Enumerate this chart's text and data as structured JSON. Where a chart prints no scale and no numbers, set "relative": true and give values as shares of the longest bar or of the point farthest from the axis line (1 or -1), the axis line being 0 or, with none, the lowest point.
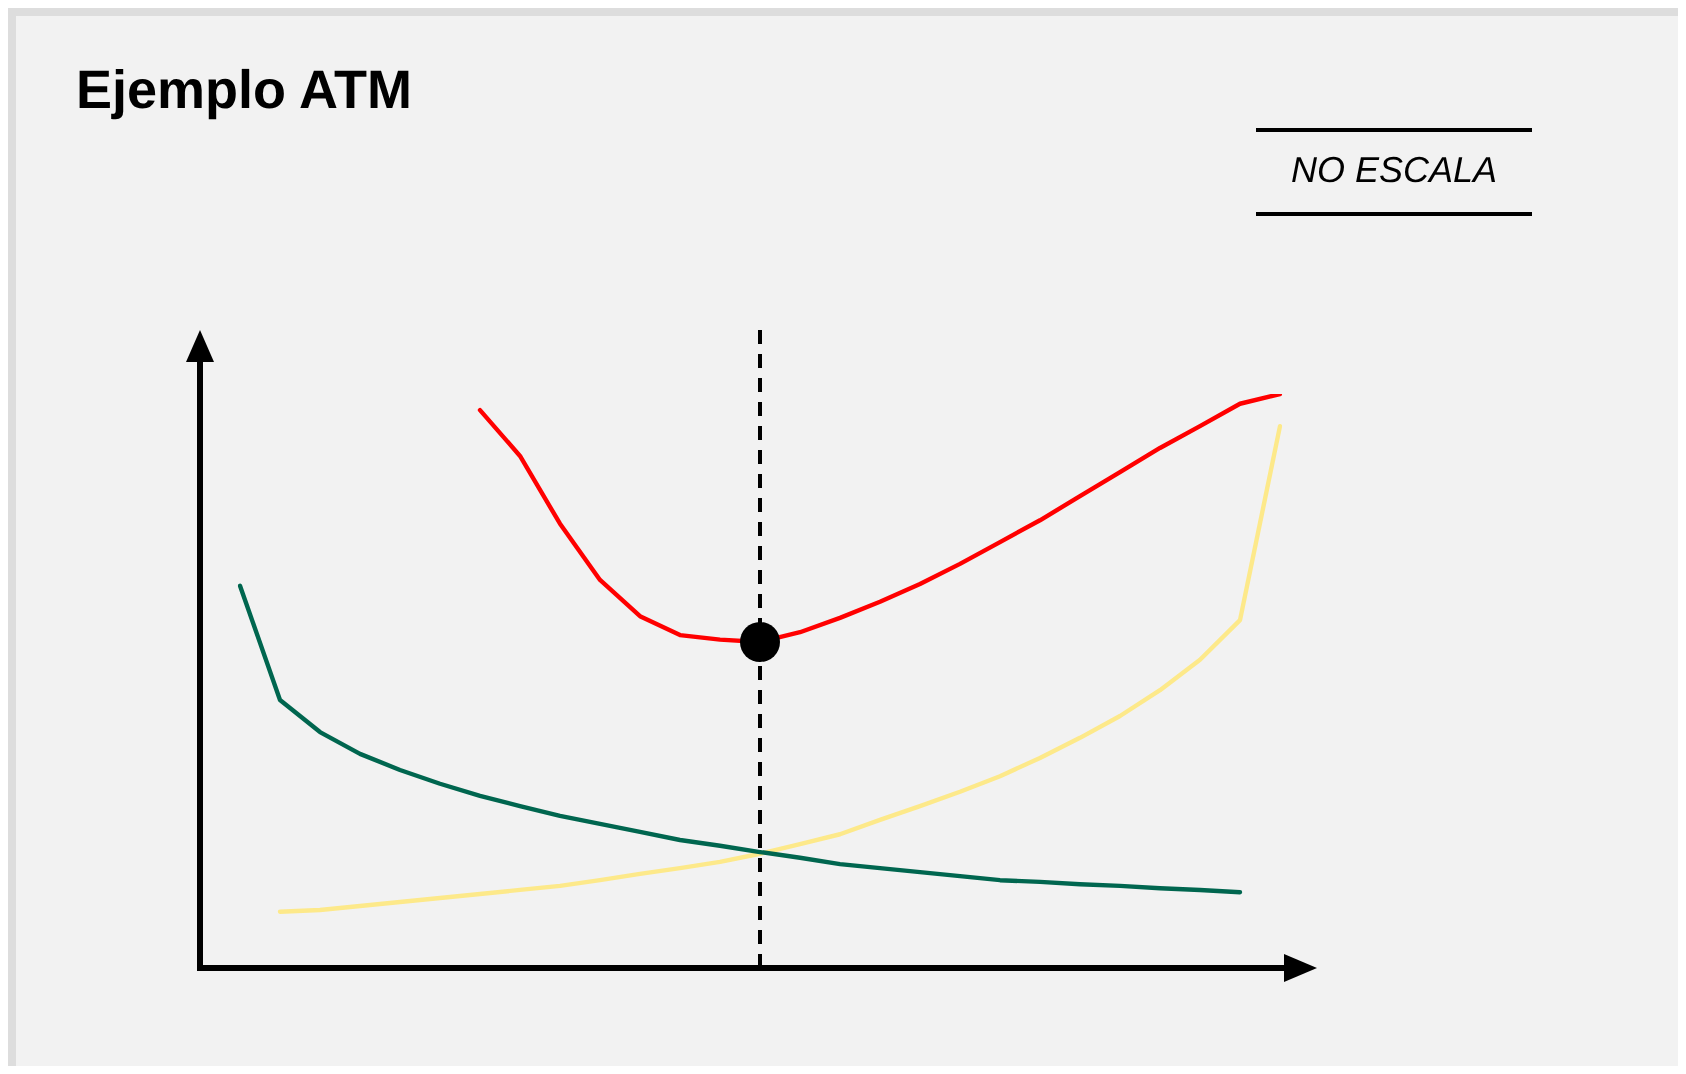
{
  "chart_data": {
    "type": "line",
    "title": "Ejemplo ATM",
    "relative": true,
    "legend": false,
    "marker": "none",
    "categories": [
      null,
      null,
      null,
      null,
      null,
      null,
      null,
      null,
      null,
      null,
      null,
      null,
      null,
      null,
      null,
      null,
      null,
      null,
      null,
      null,
      null,
      null,
      null,
      null,
      null,
      null,
      null
    ],
    "series": [
      {
        "color": "#ff0000",
        "values": [
          null,
          null,
          null,
          null,
          null,
          null,
          0.972,
          0.892,
          0.774,
          0.676,
          0.613,
          0.58,
          0.572,
          0.568,
          0.585,
          0.61,
          0.638,
          0.669,
          0.704,
          0.742,
          0.78,
          0.822,
          0.864,
          0.906,
          0.944,
          0.983,
          1.0
        ]
      },
      {
        "color": "#00664f",
        "values": [
          0.666,
          0.467,
          0.411,
          0.373,
          0.345,
          0.321,
          0.3,
          0.282,
          0.265,
          0.251,
          0.237,
          0.223,
          0.213,
          0.202,
          0.192,
          0.181,
          0.174,
          0.167,
          0.16,
          0.153,
          0.15,
          0.146,
          0.143,
          0.139,
          0.136,
          0.132,
          null
        ]
      },
      {
        "color": "#fde98a",
        "values": [
          null,
          0.098,
          0.101,
          0.108,
          0.115,
          0.122,
          0.129,
          0.136,
          0.143,
          0.153,
          0.164,
          0.174,
          0.185,
          0.199,
          0.216,
          0.233,
          0.258,
          0.282,
          0.307,
          0.334,
          0.366,
          0.401,
          0.439,
          0.484,
          0.537,
          0.606,
          0.944
        ]
      }
    ],
    "annotations": [
      "NO ESCALA"
    ]
  }
}
